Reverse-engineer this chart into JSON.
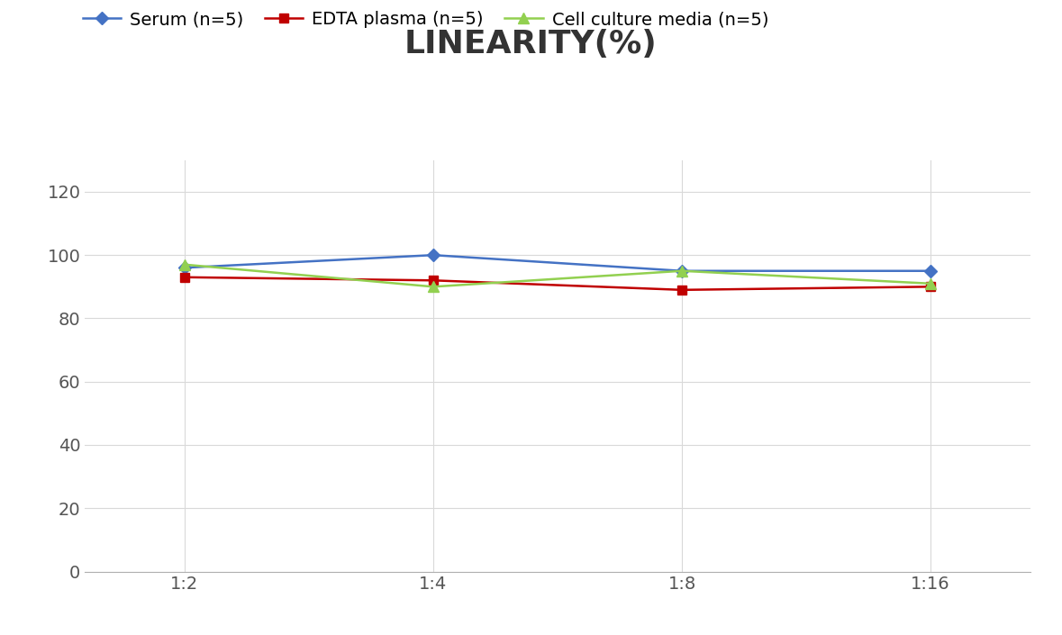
{
  "title": "LINEARITY(%)",
  "x_labels": [
    "1:2",
    "1:4",
    "1:8",
    "1:16"
  ],
  "x_positions": [
    0,
    1,
    2,
    3
  ],
  "series": [
    {
      "name": "Serum (n=5)",
      "values": [
        96,
        100,
        95,
        95
      ],
      "color": "#4472C4",
      "marker": "D",
      "marker_size": 7
    },
    {
      "name": "EDTA plasma (n=5)",
      "values": [
        93,
        92,
        89,
        90
      ],
      "color": "#C00000",
      "marker": "s",
      "marker_size": 7
    },
    {
      "name": "Cell culture media (n=5)",
      "values": [
        97,
        90,
        95,
        91
      ],
      "color": "#92D050",
      "marker": "^",
      "marker_size": 8
    }
  ],
  "ylim": [
    0,
    130
  ],
  "yticks": [
    0,
    20,
    40,
    60,
    80,
    100,
    120
  ],
  "background_color": "#ffffff",
  "grid_color": "#d9d9d9",
  "title_fontsize": 26,
  "legend_fontsize": 14,
  "tick_fontsize": 14
}
